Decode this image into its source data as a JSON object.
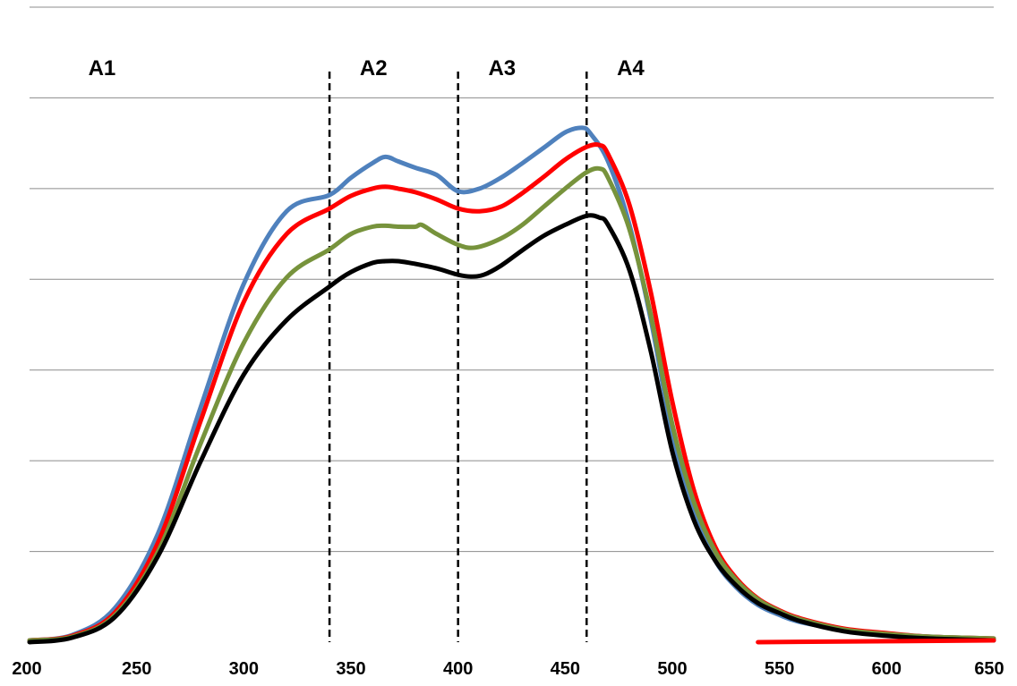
{
  "chart_data": {
    "type": "line",
    "title": "",
    "xlabel": "",
    "ylabel": "",
    "xlim": [
      200,
      650
    ],
    "ylim": [
      0,
      7
    ],
    "y_gridlines": [
      1,
      2,
      3,
      4,
      5,
      6,
      7
    ],
    "grid": "horizontal",
    "y_tick_labels_shown": false,
    "x_ticks": [
      200,
      250,
      300,
      350,
      400,
      450,
      500,
      550,
      600,
      650
    ],
    "x_tick_labels": [
      "200",
      "250",
      "300",
      "350",
      "400",
      "450",
      "500",
      "550",
      "600",
      "650"
    ],
    "region_dividers": [
      340,
      400,
      460
    ],
    "region_labels": [
      {
        "text": "A1",
        "x": 260
      },
      {
        "text": "A2",
        "x": 370
      },
      {
        "text": "A3",
        "x": 430
      },
      {
        "text": "A4",
        "x": 490
      }
    ],
    "series": [
      {
        "color": "#4f81bd",
        "x": [
          200,
          220,
          240,
          260,
          280,
          300,
          320,
          340,
          350,
          360,
          366,
          372,
          380,
          390,
          400,
          410,
          420,
          430,
          440,
          450,
          458,
          462,
          470,
          480,
          490,
          500,
          510,
          520,
          530,
          540,
          550,
          560,
          580,
          600,
          620,
          650
        ],
        "y": [
          0.02,
          0.08,
          0.38,
          1.2,
          2.6,
          3.95,
          4.75,
          4.93,
          5.12,
          5.28,
          5.35,
          5.3,
          5.23,
          5.15,
          4.97,
          5.0,
          5.12,
          5.28,
          5.45,
          5.62,
          5.67,
          5.6,
          5.3,
          4.6,
          3.55,
          2.3,
          1.45,
          0.9,
          0.6,
          0.41,
          0.3,
          0.22,
          0.14,
          0.09,
          0.06,
          0.04
        ]
      },
      {
        "color": "#ff0000",
        "x": [
          200,
          220,
          240,
          260,
          280,
          300,
          320,
          340,
          350,
          360,
          366,
          372,
          380,
          390,
          400,
          410,
          420,
          430,
          440,
          450,
          460,
          466,
          470,
          480,
          490,
          500,
          510,
          520,
          530,
          540,
          550,
          560,
          580,
          600,
          620,
          650
        ],
        "y": [
          0.02,
          0.07,
          0.33,
          1.1,
          2.45,
          3.75,
          4.5,
          4.78,
          4.92,
          5.0,
          5.02,
          5.0,
          4.96,
          4.88,
          4.78,
          4.75,
          4.8,
          4.95,
          5.13,
          5.32,
          5.46,
          5.48,
          5.38,
          4.82,
          3.85,
          2.65,
          1.68,
          1.05,
          0.7,
          0.48,
          0.35,
          0.26,
          0.15,
          0.1,
          0.06,
          0.04
        ]
      },
      {
        "color": "#77933c",
        "x": [
          200,
          220,
          240,
          260,
          280,
          300,
          320,
          340,
          350,
          360,
          366,
          372,
          380,
          383,
          390,
          400,
          408,
          420,
          430,
          440,
          450,
          460,
          466,
          470,
          480,
          490,
          500,
          510,
          520,
          530,
          540,
          550,
          560,
          580,
          600,
          620,
          650
        ],
        "y": [
          0.02,
          0.06,
          0.3,
          1.0,
          2.2,
          3.3,
          4.02,
          4.33,
          4.5,
          4.58,
          4.59,
          4.58,
          4.58,
          4.6,
          4.5,
          4.38,
          4.35,
          4.45,
          4.6,
          4.8,
          5.0,
          5.18,
          5.22,
          5.12,
          4.55,
          3.6,
          2.4,
          1.55,
          1.0,
          0.68,
          0.47,
          0.34,
          0.25,
          0.14,
          0.09,
          0.06,
          0.04
        ]
      },
      {
        "color": "#000000",
        "x": [
          200,
          220,
          240,
          260,
          280,
          300,
          320,
          340,
          350,
          360,
          366,
          372,
          380,
          390,
          400,
          406,
          412,
          420,
          430,
          440,
          450,
          460,
          466,
          470,
          480,
          490,
          500,
          510,
          520,
          530,
          540,
          550,
          560,
          580,
          600,
          620,
          650
        ],
        "y": [
          0.0,
          0.05,
          0.28,
          0.95,
          2.0,
          2.95,
          3.55,
          3.92,
          4.08,
          4.18,
          4.2,
          4.2,
          4.17,
          4.12,
          4.05,
          4.03,
          4.05,
          4.15,
          4.32,
          4.48,
          4.6,
          4.7,
          4.68,
          4.6,
          4.1,
          3.2,
          2.1,
          1.35,
          0.9,
          0.62,
          0.43,
          0.32,
          0.23,
          0.12,
          0.07,
          0.04,
          0.02
        ]
      },
      {
        "color": "#ff0000",
        "x": [
          540,
          650
        ],
        "y": [
          0.0,
          0.02
        ]
      }
    ],
    "legend": "none"
  }
}
